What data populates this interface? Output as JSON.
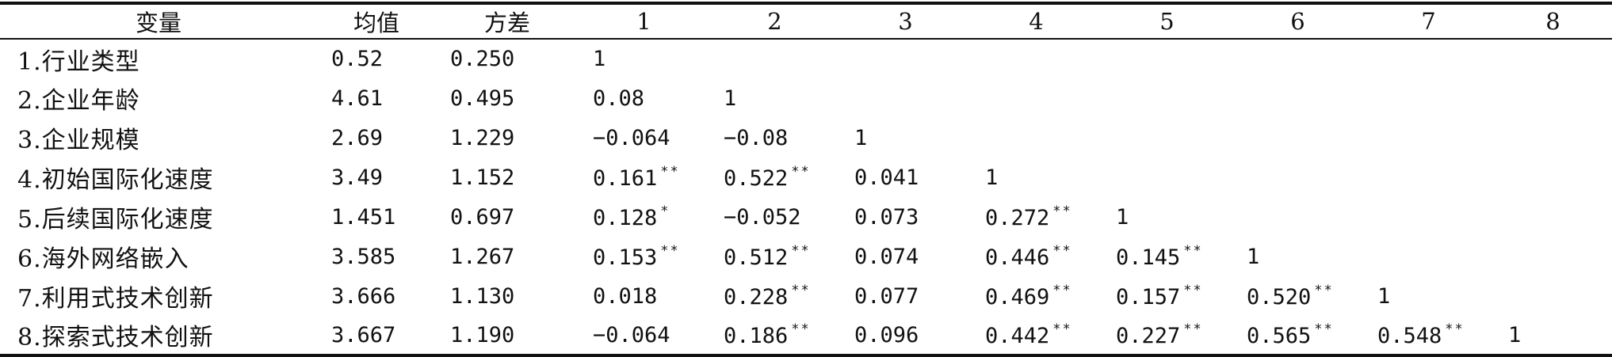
{
  "table": {
    "headers": [
      "变量",
      "均值",
      "方差",
      "1",
      "2",
      "3",
      "4",
      "5",
      "6",
      "7",
      "8"
    ],
    "rows": [
      {
        "name": "1.行业类型",
        "mean": "0.52",
        "variance": "0.250",
        "corr": [
          {
            "v": "1",
            "sig": ""
          }
        ]
      },
      {
        "name": "2.企业年龄",
        "mean": "4.61",
        "variance": "0.495",
        "corr": [
          {
            "v": "0.08",
            "sig": ""
          },
          {
            "v": "1",
            "sig": ""
          }
        ]
      },
      {
        "name": "3.企业规模",
        "mean": "2.69",
        "variance": "1.229",
        "corr": [
          {
            "v": "−0.064",
            "sig": ""
          },
          {
            "v": "−0.08",
            "sig": ""
          },
          {
            "v": "1",
            "sig": ""
          }
        ]
      },
      {
        "name": "4.初始国际化速度",
        "mean": "3.49",
        "variance": "1.152",
        "corr": [
          {
            "v": "0.161",
            "sig": "**"
          },
          {
            "v": "0.522",
            "sig": "**"
          },
          {
            "v": "0.041",
            "sig": ""
          },
          {
            "v": "1",
            "sig": ""
          }
        ]
      },
      {
        "name": "5.后续国际化速度",
        "mean": "1.451",
        "variance": "0.697",
        "corr": [
          {
            "v": "0.128",
            "sig": "*"
          },
          {
            "v": "−0.052",
            "sig": ""
          },
          {
            "v": "0.073",
            "sig": ""
          },
          {
            "v": "0.272",
            "sig": "**"
          },
          {
            "v": "1",
            "sig": ""
          }
        ]
      },
      {
        "name": "6.海外网络嵌入",
        "mean": "3.585",
        "variance": "1.267",
        "corr": [
          {
            "v": "0.153",
            "sig": "**"
          },
          {
            "v": "0.512",
            "sig": "**"
          },
          {
            "v": "0.074",
            "sig": ""
          },
          {
            "v": "0.446",
            "sig": "**"
          },
          {
            "v": "0.145",
            "sig": "**"
          },
          {
            "v": "1",
            "sig": ""
          }
        ]
      },
      {
        "name": "7.利用式技术创新",
        "mean": "3.666",
        "variance": "1.130",
        "corr": [
          {
            "v": "0.018",
            "sig": ""
          },
          {
            "v": "0.228",
            "sig": "**"
          },
          {
            "v": "0.077",
            "sig": ""
          },
          {
            "v": "0.469",
            "sig": "**"
          },
          {
            "v": "0.157",
            "sig": "**"
          },
          {
            "v": "0.520",
            "sig": "**"
          },
          {
            "v": "1",
            "sig": ""
          }
        ]
      },
      {
        "name": "8.探索式技术创新",
        "mean": "3.667",
        "variance": "1.190",
        "corr": [
          {
            "v": "−0.064",
            "sig": ""
          },
          {
            "v": "0.186",
            "sig": "**"
          },
          {
            "v": "0.096",
            "sig": ""
          },
          {
            "v": "0.442",
            "sig": "**"
          },
          {
            "v": "0.227",
            "sig": "**"
          },
          {
            "v": "0.565",
            "sig": "**"
          },
          {
            "v": "0.548",
            "sig": "**"
          },
          {
            "v": "1",
            "sig": ""
          }
        ]
      }
    ]
  }
}
